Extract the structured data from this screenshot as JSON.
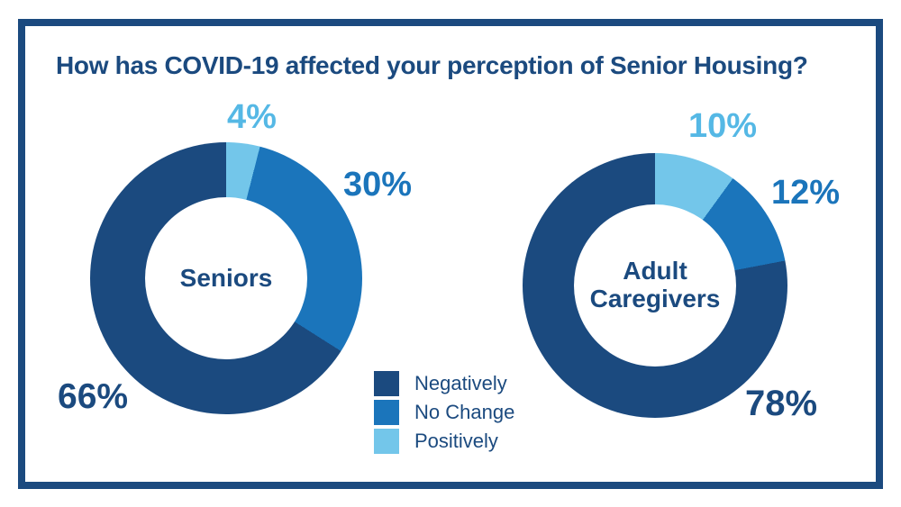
{
  "title": "How has COVID-19 affected your perception of Senior Housing?",
  "theme": {
    "background": "#FFFFFF",
    "border_navy": "#1B4A7F",
    "navy": "#1B4A7F",
    "mid_blue": "#1B75BB",
    "light_blue": "#73C6EA",
    "light_label": "#55B8E5"
  },
  "legend": {
    "items": [
      {
        "label": "Negatively",
        "color": "#1B4A7F"
      },
      {
        "label": "No Change",
        "color": "#1B75BB"
      },
      {
        "label": "Positively",
        "color": "#73C6EA"
      }
    ]
  },
  "chart_data": {
    "type": "pie",
    "subtype": "donut-pair",
    "title": "How has COVID-19 affected your perception of Senior Housing?",
    "legend_position": "bottom-center",
    "legend_entries": [
      "Negatively",
      "No Change",
      "Positively"
    ],
    "colors": {
      "Negatively": "#1B4A7F",
      "No Change": "#1B75BB",
      "Positively": "#73C6EA"
    },
    "charts": [
      {
        "label": "Seniors",
        "start_angle_deg": 0,
        "direction": "clockwise",
        "segments": [
          {
            "category": "Positively",
            "value": 4,
            "display": "4%"
          },
          {
            "category": "No Change",
            "value": 30,
            "display": "30%"
          },
          {
            "category": "Negatively",
            "value": 66,
            "display": "66%"
          }
        ]
      },
      {
        "label": "Adult Caregivers",
        "start_angle_deg": 0,
        "direction": "clockwise",
        "segments": [
          {
            "category": "Positively",
            "value": 10,
            "display": "10%"
          },
          {
            "category": "No Change",
            "value": 12,
            "display": "12%"
          },
          {
            "category": "Negatively",
            "value": 78,
            "display": "78%"
          }
        ]
      }
    ]
  }
}
